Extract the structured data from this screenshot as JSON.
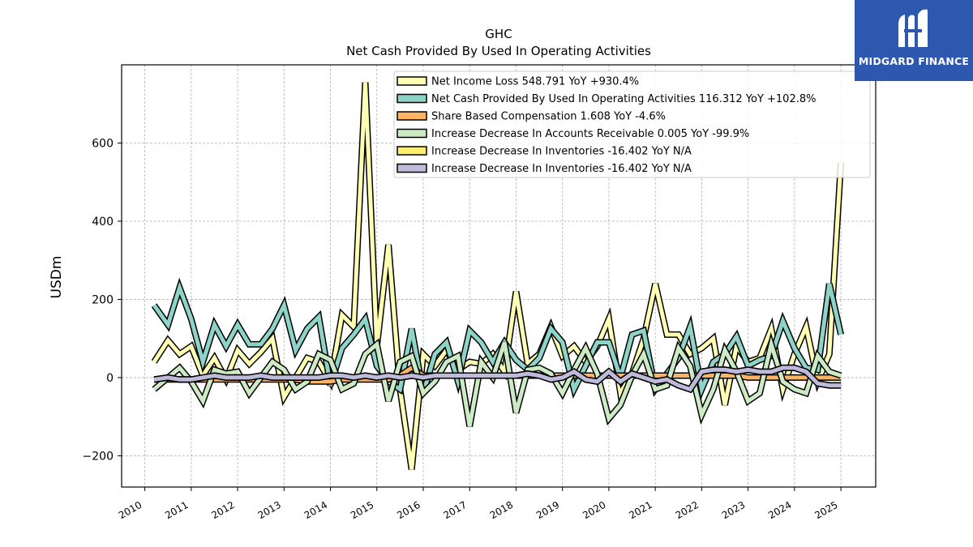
{
  "chart_data": {
    "type": "line",
    "title": "GHC",
    "subtitle": "Net Cash Provided By Used In Operating Activities",
    "xlabel": "",
    "ylabel": "USDm",
    "xlim": [
      2009.5,
      2025.75
    ],
    "ylim": [
      -280,
      800
    ],
    "yticks": [
      -200,
      0,
      200,
      400,
      600
    ],
    "xticks": [
      "2010",
      "2011",
      "2012",
      "2013",
      "2014",
      "2015",
      "2016",
      "2017",
      "2018",
      "2019",
      "2020",
      "2021",
      "2022",
      "2023",
      "2024",
      "2025"
    ],
    "grid": true,
    "legend_position": "top-right",
    "x": [
      2010.2,
      2010.5,
      2010.75,
      2011.0,
      2011.25,
      2011.5,
      2011.75,
      2012.0,
      2012.25,
      2012.5,
      2012.75,
      2013.0,
      2013.25,
      2013.5,
      2013.75,
      2014.0,
      2014.25,
      2014.5,
      2014.75,
      2015.0,
      2015.25,
      2015.5,
      2015.75,
      2016.0,
      2016.25,
      2016.5,
      2016.75,
      2017.0,
      2017.25,
      2017.5,
      2017.75,
      2018.0,
      2018.25,
      2018.5,
      2018.75,
      2019.0,
      2019.25,
      2019.5,
      2019.75,
      2020.0,
      2020.25,
      2020.5,
      2020.75,
      2021.0,
      2021.25,
      2021.5,
      2021.75,
      2022.0,
      2022.25,
      2022.5,
      2022.75,
      2023.0,
      2023.25,
      2023.5,
      2023.75,
      2024.0,
      2024.25,
      2024.5,
      2024.75,
      2025.0
    ],
    "series": [
      {
        "name": "Net Income Loss  548.791 YoY +930.4%",
        "color": "#ffffb3",
        "line_width": 5,
        "values": [
          40,
          95,
          60,
          80,
          5,
          50,
          -5,
          70,
          35,
          65,
          100,
          -50,
          0,
          50,
          40,
          -10,
          160,
          130,
          755,
          80,
          340,
          -30,
          -235,
          60,
          30,
          70,
          20,
          40,
          35,
          60,
          15,
          220,
          35,
          60,
          130,
          55,
          80,
          40,
          80,
          150,
          -40,
          10,
          100,
          240,
          110,
          110,
          60,
          75,
          100,
          -70,
          80,
          40,
          50,
          125,
          -30,
          60,
          130,
          -10,
          60,
          550
        ]
      },
      {
        "name": "Net Cash Provided By Used In Operating Activities  116.312 YoY +102.8%",
        "color": "#8dd3c7",
        "line_width": 5,
        "values": [
          185,
          135,
          230,
          150,
          40,
          135,
          80,
          135,
          85,
          85,
          125,
          185,
          70,
          125,
          155,
          -20,
          75,
          110,
          150,
          30,
          -10,
          -30,
          125,
          -40,
          60,
          90,
          -10,
          120,
          90,
          40,
          90,
          45,
          20,
          50,
          125,
          90,
          -30,
          30,
          90,
          90,
          0,
          110,
          120,
          -30,
          10,
          50,
          130,
          -30,
          40,
          60,
          105,
          30,
          45,
          55,
          145,
          75,
          25,
          20,
          240,
          110
        ]
      },
      {
        "name": "Share Based Compensation  1.608 YoY -4.6%",
        "color": "#fdb462",
        "line_width": 5,
        "values": [
          -5,
          -5,
          -5,
          -5,
          -5,
          -5,
          -5,
          -5,
          -5,
          -5,
          -5,
          -5,
          -5,
          -10,
          -10,
          -10,
          -5,
          -5,
          -5,
          -5,
          -5,
          5,
          25,
          5,
          5,
          5,
          5,
          5,
          5,
          5,
          5,
          5,
          5,
          5,
          5,
          5,
          5,
          5,
          5,
          5,
          5,
          5,
          5,
          5,
          5,
          5,
          5,
          5,
          5,
          5,
          5,
          0,
          0,
          0,
          0,
          0,
          0,
          0,
          0,
          0
        ]
      },
      {
        "name": "Increase Decrease In Accounts Receivable  0.005 YoY -99.9%",
        "color": "#ccebc5",
        "line_width": 5,
        "values": [
          -30,
          0,
          25,
          -10,
          -60,
          20,
          10,
          15,
          -40,
          0,
          40,
          20,
          -30,
          -10,
          60,
          45,
          -30,
          -15,
          60,
          85,
          -60,
          40,
          55,
          -40,
          -10,
          40,
          55,
          -125,
          40,
          0,
          90,
          -90,
          20,
          25,
          10,
          -40,
          20,
          75,
          10,
          -105,
          -70,
          5,
          60,
          -30,
          -20,
          75,
          30,
          -95,
          -30,
          70,
          15,
          -60,
          -40,
          85,
          -10,
          -30,
          -40,
          55,
          15,
          5
        ]
      },
      {
        "name": "Increase Decrease In Inventories  -16.402 YoY N/A",
        "color": "#ffed6f",
        "line_width": 5,
        "values": [
          -5,
          0,
          -5,
          -5,
          0,
          5,
          0,
          0,
          0,
          5,
          0,
          0,
          0,
          0,
          0,
          5,
          5,
          0,
          5,
          0,
          5,
          0,
          5,
          0,
          5,
          5,
          5,
          5,
          5,
          5,
          5,
          5,
          10,
          5,
          -5,
          0,
          15,
          -5,
          -10,
          15,
          -10,
          10,
          0,
          -10,
          -5,
          -20,
          -30,
          15,
          20,
          20,
          15,
          20,
          15,
          15,
          25,
          25,
          15,
          -15,
          -20,
          -20
        ]
      },
      {
        "name": "Increase Decrease In Inventories  -16.402 YoY N/A",
        "color": "#bebada",
        "line_width": 5,
        "values": [
          -5,
          0,
          -5,
          -5,
          0,
          5,
          0,
          0,
          0,
          5,
          0,
          0,
          0,
          0,
          0,
          5,
          5,
          0,
          5,
          0,
          5,
          0,
          5,
          0,
          5,
          5,
          5,
          5,
          5,
          5,
          5,
          5,
          10,
          5,
          -5,
          0,
          15,
          -5,
          -10,
          15,
          -10,
          10,
          0,
          -10,
          -5,
          -20,
          -30,
          15,
          20,
          20,
          15,
          20,
          15,
          15,
          25,
          25,
          15,
          -15,
          -20,
          -20
        ]
      }
    ]
  },
  "logo": {
    "text": "MIDGARD FINANCE",
    "icon": "midgard-logo-icon",
    "background": "#2e57b0"
  }
}
